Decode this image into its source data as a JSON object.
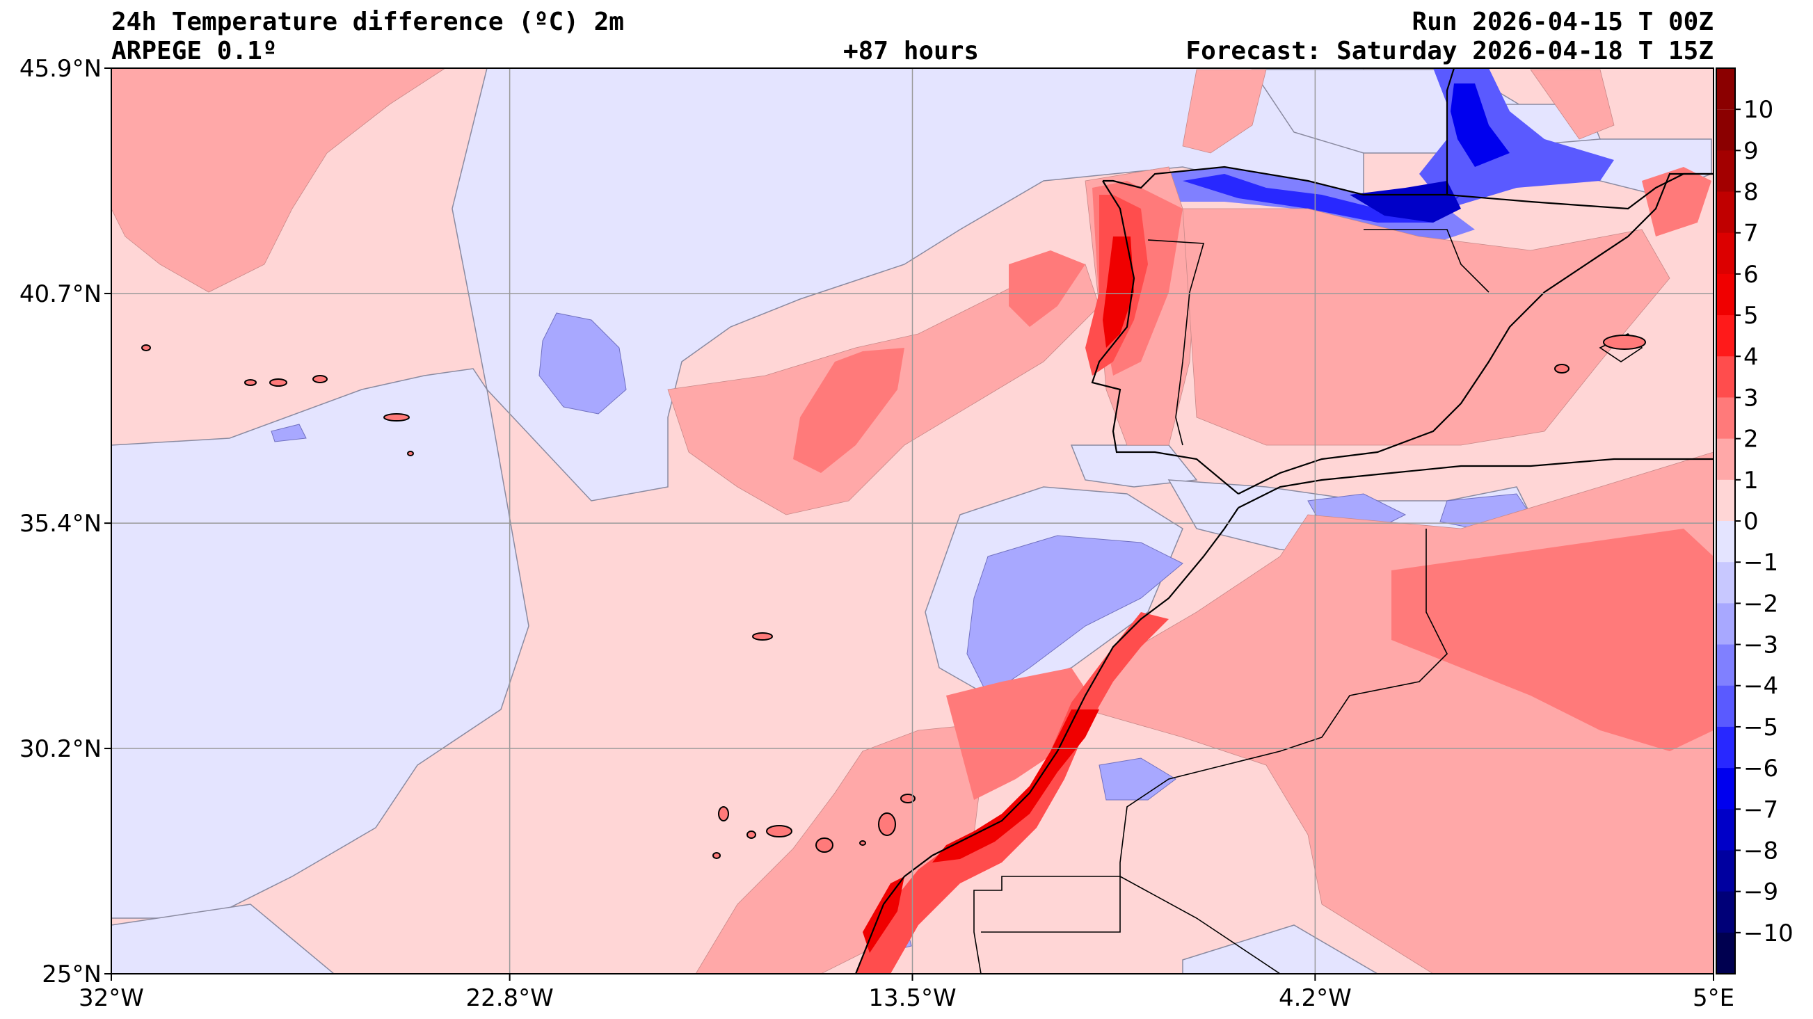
{
  "header": {
    "title": "24h Temperature difference (ºC) 2m",
    "model": "ARPEGE 0.1º",
    "lead": "+87 hours",
    "run": "Run 2026-04-15 T 00Z",
    "forecast": "Forecast: Saturday 2026-04-18 T 15Z"
  },
  "map": {
    "lon_range": [
      -32,
      5
    ],
    "lat_range": [
      25,
      45.9
    ],
    "lon_ticks": [
      {
        "value": -32,
        "label": "32°W"
      },
      {
        "value": -22.8,
        "label": "22.8°W"
      },
      {
        "value": -13.5,
        "label": "13.5°W"
      },
      {
        "value": -4.2,
        "label": "4.2°W"
      },
      {
        "value": 5,
        "label": "5°E"
      }
    ],
    "lat_ticks": [
      {
        "value": 45.9,
        "label": "45.9°N"
      },
      {
        "value": 40.7,
        "label": "40.7°N"
      },
      {
        "value": 35.4,
        "label": "35.4°N"
      },
      {
        "value": 30.2,
        "label": "30.2°N"
      },
      {
        "value": 25,
        "label": "25°N"
      }
    ],
    "grid": true
  },
  "colorbar": {
    "levels": [
      {
        "label": "10",
        "color": "#8b0000"
      },
      {
        "label": "9",
        "color": "#a30000"
      },
      {
        "label": "8",
        "color": "#c00000"
      },
      {
        "label": "7",
        "color": "#dc0000"
      },
      {
        "label": "6",
        "color": "#f00000"
      },
      {
        "label": "5",
        "color": "#ff1a1a"
      },
      {
        "label": "4",
        "color": "#ff4d4d"
      },
      {
        "label": "3",
        "color": "#ff7a7a"
      },
      {
        "label": "2",
        "color": "#ffa8a8"
      },
      {
        "label": "1",
        "color": "#ffd6d6"
      },
      {
        "label": "0",
        "color": "#e4e4ff"
      },
      {
        "label": "−1",
        "color": "#c8c8ff"
      },
      {
        "label": "−2",
        "color": "#a8a8ff"
      },
      {
        "label": "−3",
        "color": "#8080ff"
      },
      {
        "label": "−4",
        "color": "#5a5aff"
      },
      {
        "label": "−5",
        "color": "#2828ff"
      },
      {
        "label": "−6",
        "color": "#0000ee"
      },
      {
        "label": "−7",
        "color": "#0000c8"
      },
      {
        "label": "−8",
        "color": "#0000a0"
      },
      {
        "label": "−9",
        "color": "#000078"
      },
      {
        "label": "−10",
        "color": "#000050"
      }
    ],
    "top_color": "#8b0000"
  }
}
